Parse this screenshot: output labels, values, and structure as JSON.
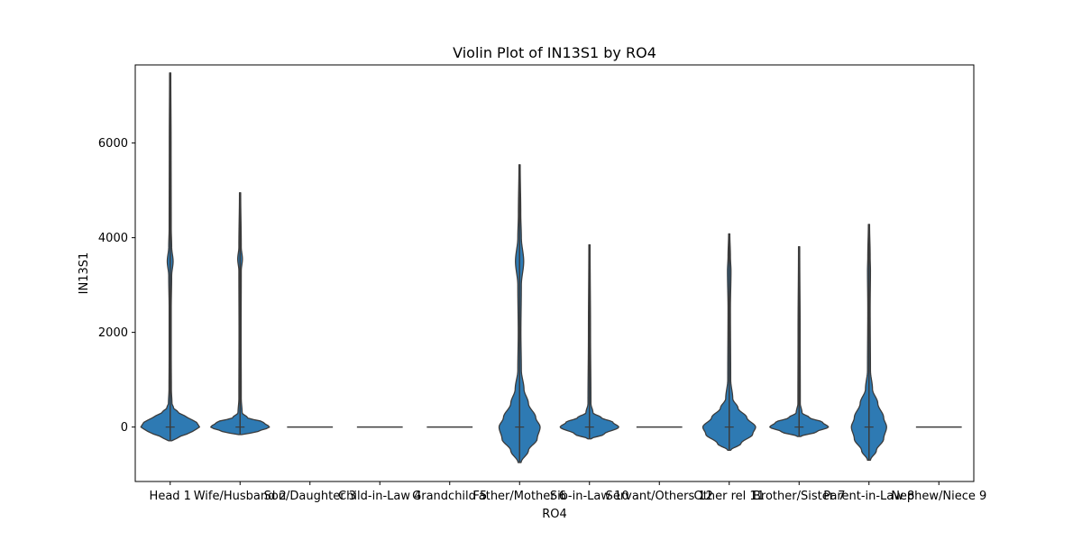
{
  "chart_data": {
    "type": "violin",
    "title": "Violin Plot of IN13S1 by RO4",
    "xlabel": "RO4",
    "ylabel": "IN13S1",
    "ylim": [
      -1150,
      7650
    ],
    "yticks": [
      0,
      2000,
      4000,
      6000
    ],
    "grid": false,
    "legend": "none",
    "color": "#2e7ab3",
    "categories": [
      "Head 1",
      "Wife/Husband 2",
      "Son/Daughter 3",
      "Child-in-Law 4",
      "Grandchild 5",
      "Father/Mother 6",
      "Sib-in-Law 10",
      "Servant/Others 12",
      "Other rel 11",
      "Brother/Sister 7",
      "Parent-in-Law 8",
      "Nephew/Niece 9"
    ],
    "violins": [
      {
        "min": -290,
        "max": 7480,
        "median": 0,
        "profile": [
          [
            -290,
            0.05
          ],
          [
            -200,
            0.35
          ],
          [
            -100,
            0.75
          ],
          [
            0,
            1.0
          ],
          [
            100,
            0.9
          ],
          [
            200,
            0.6
          ],
          [
            300,
            0.3
          ],
          [
            400,
            0.12
          ],
          [
            500,
            0.06
          ],
          [
            800,
            0.04
          ],
          [
            1500,
            0.035
          ],
          [
            2500,
            0.035
          ],
          [
            3200,
            0.05
          ],
          [
            3500,
            0.1
          ],
          [
            3800,
            0.05
          ],
          [
            4200,
            0.035
          ],
          [
            6000,
            0.03
          ],
          [
            7480,
            0.02
          ]
        ]
      },
      {
        "min": -160,
        "max": 4950,
        "median": 0,
        "profile": [
          [
            -160,
            0.05
          ],
          [
            -100,
            0.6
          ],
          [
            0,
            1.0
          ],
          [
            100,
            0.8
          ],
          [
            200,
            0.25
          ],
          [
            300,
            0.07
          ],
          [
            600,
            0.04
          ],
          [
            2000,
            0.035
          ],
          [
            3300,
            0.04
          ],
          [
            3550,
            0.08
          ],
          [
            3800,
            0.04
          ],
          [
            4950,
            0.02
          ]
        ]
      },
      {
        "min": 0,
        "max": 0,
        "median": 0,
        "profile": [
          [
            0,
            1.0
          ]
        ]
      },
      {
        "min": 0,
        "max": 0,
        "median": 0,
        "profile": [
          [
            0,
            1.0
          ]
        ]
      },
      {
        "min": 0,
        "max": 0,
        "median": 0,
        "profile": [
          [
            0,
            1.0
          ]
        ]
      },
      {
        "min": -750,
        "max": 5540,
        "median": 0,
        "profile": [
          [
            -750,
            0.05
          ],
          [
            -500,
            0.3
          ],
          [
            -250,
            0.6
          ],
          [
            0,
            0.7
          ],
          [
            200,
            0.55
          ],
          [
            500,
            0.3
          ],
          [
            800,
            0.15
          ],
          [
            1200,
            0.06
          ],
          [
            2000,
            0.045
          ],
          [
            3000,
            0.06
          ],
          [
            3500,
            0.14
          ],
          [
            4000,
            0.06
          ],
          [
            4500,
            0.04
          ],
          [
            5540,
            0.02
          ]
        ]
      },
      {
        "min": -250,
        "max": 3850,
        "median": 0,
        "profile": [
          [
            -250,
            0.05
          ],
          [
            -150,
            0.5
          ],
          [
            0,
            1.0
          ],
          [
            100,
            0.8
          ],
          [
            200,
            0.4
          ],
          [
            300,
            0.12
          ],
          [
            500,
            0.05
          ],
          [
            2000,
            0.035
          ],
          [
            3850,
            0.02
          ]
        ]
      },
      {
        "min": 0,
        "max": 0,
        "median": 0,
        "profile": [
          [
            0,
            1.0
          ]
        ]
      },
      {
        "min": -490,
        "max": 4080,
        "median": 0,
        "profile": [
          [
            -490,
            0.05
          ],
          [
            -350,
            0.4
          ],
          [
            -150,
            0.8
          ],
          [
            0,
            0.9
          ],
          [
            200,
            0.6
          ],
          [
            400,
            0.3
          ],
          [
            600,
            0.12
          ],
          [
            1000,
            0.05
          ],
          [
            2500,
            0.04
          ],
          [
            3300,
            0.06
          ],
          [
            3600,
            0.04
          ],
          [
            4080,
            0.02
          ]
        ]
      },
      {
        "min": -200,
        "max": 3810,
        "median": 0,
        "profile": [
          [
            -200,
            0.05
          ],
          [
            -100,
            0.6
          ],
          [
            0,
            1.0
          ],
          [
            100,
            0.8
          ],
          [
            200,
            0.35
          ],
          [
            300,
            0.1
          ],
          [
            500,
            0.04
          ],
          [
            2000,
            0.035
          ],
          [
            3810,
            0.02
          ]
        ]
      },
      {
        "min": -700,
        "max": 4280,
        "median": 0,
        "profile": [
          [
            -700,
            0.05
          ],
          [
            -500,
            0.25
          ],
          [
            -250,
            0.5
          ],
          [
            0,
            0.6
          ],
          [
            200,
            0.5
          ],
          [
            500,
            0.3
          ],
          [
            800,
            0.12
          ],
          [
            1200,
            0.05
          ],
          [
            2500,
            0.04
          ],
          [
            3300,
            0.05
          ],
          [
            3600,
            0.04
          ],
          [
            4280,
            0.02
          ]
        ]
      },
      {
        "min": 0,
        "max": 0,
        "median": 0,
        "profile": [
          [
            0,
            1.0
          ]
        ]
      }
    ]
  }
}
